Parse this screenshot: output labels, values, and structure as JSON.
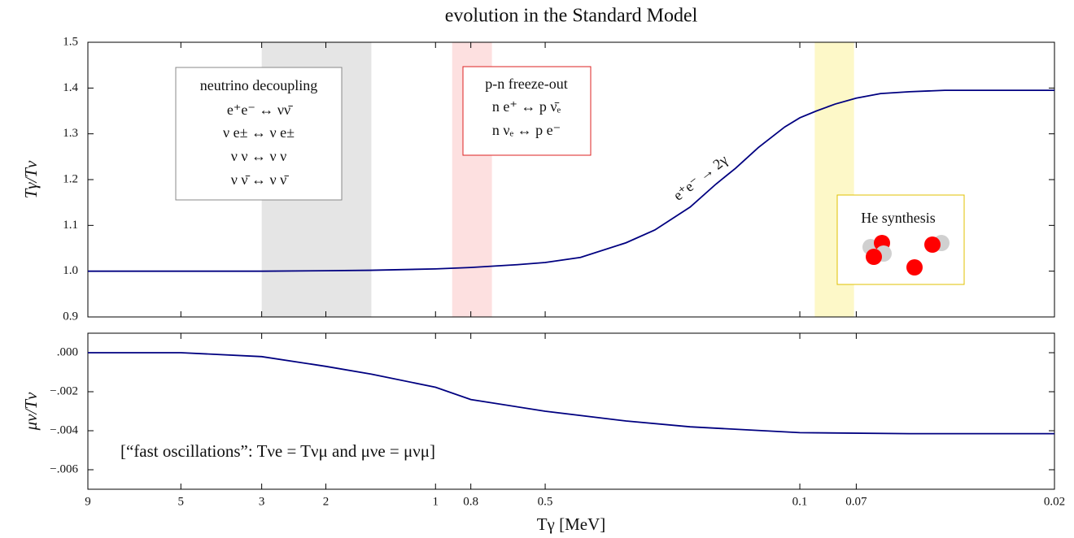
{
  "chart_data": [
    {
      "type": "line",
      "title": "evolution in the Standard Model",
      "ylabel": "Tγ/Tν",
      "xscale": "log",
      "xlim": [
        9,
        0.02
      ],
      "ylim": [
        0.9,
        1.5
      ],
      "yticks": [
        0.9,
        {
          "value": 1,
          "label": "1.0"
        },
        1.1,
        1.2,
        1.3,
        1.4,
        1.5
      ],
      "x": [
        9,
        5,
        3,
        2,
        1.5,
        1,
        0.8,
        0.6,
        0.5,
        0.4,
        0.3,
        0.25,
        0.2,
        0.17,
        0.15,
        0.13,
        0.11,
        0.1,
        0.09,
        0.08,
        0.07,
        0.06,
        0.05,
        0.04,
        0.03,
        0.02
      ],
      "series": [
        {
          "color": "#000080",
          "values": [
            1.0,
            1.0,
            1.0,
            1.001,
            1.002,
            1.005,
            1.008,
            1.014,
            1.019,
            1.03,
            1.062,
            1.09,
            1.14,
            1.19,
            1.225,
            1.27,
            1.315,
            1.335,
            1.35,
            1.365,
            1.378,
            1.388,
            1.392,
            1.395,
            1.395,
            1.395
          ]
        }
      ],
      "bands": [
        {
          "from": 3,
          "to": 1.5,
          "color": "#e5e5e5"
        },
        {
          "from": 0.9,
          "to": 0.7,
          "color": "#fde0e0"
        },
        {
          "from": 0.091,
          "to": 0.071,
          "color": "#fdf8c8"
        }
      ],
      "annotations": [
        [
          "neutrino decoupling",
          "e⁺e⁻ ↔ νν̄",
          "ν e± ↔ ν e±",
          "ν ν  ↔ ν ν",
          "ν ν̄  ↔ ν ν̄"
        ],
        [
          "p-n freeze-out",
          "n e⁺ ↔ p ν̄ₑ",
          "n νₑ ↔ p e⁻"
        ],
        [
          "e⁺e⁻ → 2γ"
        ],
        [
          "He synthesis"
        ]
      ]
    },
    {
      "type": "line",
      "ylabel": "μν/Tν",
      "xlabel": "Tγ [MeV]",
      "xscale": "log",
      "xlim": [
        9,
        0.02
      ],
      "ylim": [
        -0.007,
        0.001
      ],
      "yticks": [
        {
          "value": -0.006,
          "label": "−.006"
        },
        {
          "value": -0.004,
          "label": "−.004"
        },
        {
          "value": -0.002,
          "label": "−.002"
        },
        {
          "value": 0,
          "label": ".000"
        }
      ],
      "xticks": [
        9,
        5,
        3,
        2,
        1,
        0.8,
        0.5,
        0.1,
        0.07,
        0.02
      ],
      "x": [
        9,
        5,
        3,
        2,
        1.5,
        1,
        0.8,
        0.5,
        0.3,
        0.2,
        0.1,
        0.05,
        0.02
      ],
      "series": [
        {
          "color": "#000080",
          "values": [
            0,
            0,
            -0.0002,
            -0.0007,
            -0.0011,
            -0.00177,
            -0.0024,
            -0.003,
            -0.0035,
            -0.0038,
            -0.0041,
            -0.00415,
            -0.00415
          ]
        }
      ],
      "annotations": [
        "[“fast oscillations”: Tνe = Tνμ and μνe = μνμ]"
      ]
    }
  ]
}
